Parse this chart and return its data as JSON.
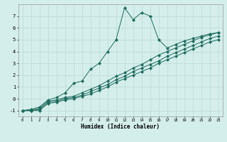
{
  "xlabel": "Humidex (Indice chaleur)",
  "bg_color": "#d4eeeb",
  "line_color": "#1e6b5e",
  "grid_color": "#c0ddd9",
  "xlim": [
    -0.5,
    23.5
  ],
  "ylim": [
    -1.5,
    8.0
  ],
  "xticks": [
    0,
    1,
    2,
    3,
    4,
    5,
    6,
    7,
    8,
    9,
    10,
    11,
    12,
    13,
    14,
    15,
    16,
    17,
    18,
    19,
    20,
    21,
    22,
    23
  ],
  "yticks": [
    -1,
    0,
    1,
    2,
    3,
    4,
    5,
    6,
    7
  ],
  "series": [
    {
      "x": [
        0,
        1,
        2,
        3,
        4,
        5,
        6,
        7,
        8,
        9,
        10,
        11,
        12,
        13,
        14,
        15,
        16,
        17,
        18,
        19,
        20,
        21,
        22,
        23
      ],
      "y": [
        -1.0,
        -0.9,
        -0.7,
        -0.1,
        0.1,
        0.5,
        1.3,
        1.5,
        2.5,
        3.0,
        4.0,
        5.0,
        7.7,
        6.7,
        7.3,
        7.0,
        5.0,
        4.3,
        4.6,
        4.9,
        5.1,
        5.3,
        5.5,
        5.6
      ]
    },
    {
      "x": [
        0,
        1,
        2,
        3,
        4,
        5,
        6,
        7,
        8,
        9,
        10,
        11,
        12,
        13,
        14,
        15,
        16,
        17,
        18,
        19,
        20,
        21,
        22,
        23
      ],
      "y": [
        -1.0,
        -1.0,
        -0.8,
        -0.2,
        -0.1,
        0.1,
        0.2,
        0.5,
        0.8,
        1.1,
        1.5,
        1.9,
        2.2,
        2.6,
        2.9,
        3.3,
        3.7,
        4.0,
        4.3,
        4.6,
        4.9,
        5.2,
        5.4,
        5.6
      ]
    },
    {
      "x": [
        0,
        1,
        2,
        3,
        4,
        5,
        6,
        7,
        8,
        9,
        10,
        11,
        12,
        13,
        14,
        15,
        16,
        17,
        18,
        19,
        20,
        21,
        22,
        23
      ],
      "y": [
        -1.0,
        -1.0,
        -0.9,
        -0.3,
        -0.2,
        0.0,
        0.1,
        0.3,
        0.6,
        0.9,
        1.2,
        1.6,
        1.9,
        2.3,
        2.6,
        2.9,
        3.2,
        3.6,
        3.9,
        4.2,
        4.5,
        4.8,
        5.1,
        5.3
      ]
    },
    {
      "x": [
        0,
        1,
        2,
        3,
        4,
        5,
        6,
        7,
        8,
        9,
        10,
        11,
        12,
        13,
        14,
        15,
        16,
        17,
        18,
        19,
        20,
        21,
        22,
        23
      ],
      "y": [
        -1.0,
        -1.0,
        -1.0,
        -0.4,
        -0.3,
        -0.1,
        0.0,
        0.2,
        0.4,
        0.7,
        1.0,
        1.4,
        1.7,
        2.0,
        2.3,
        2.6,
        3.0,
        3.3,
        3.6,
        3.9,
        4.2,
        4.5,
        4.8,
        5.0
      ]
    }
  ]
}
